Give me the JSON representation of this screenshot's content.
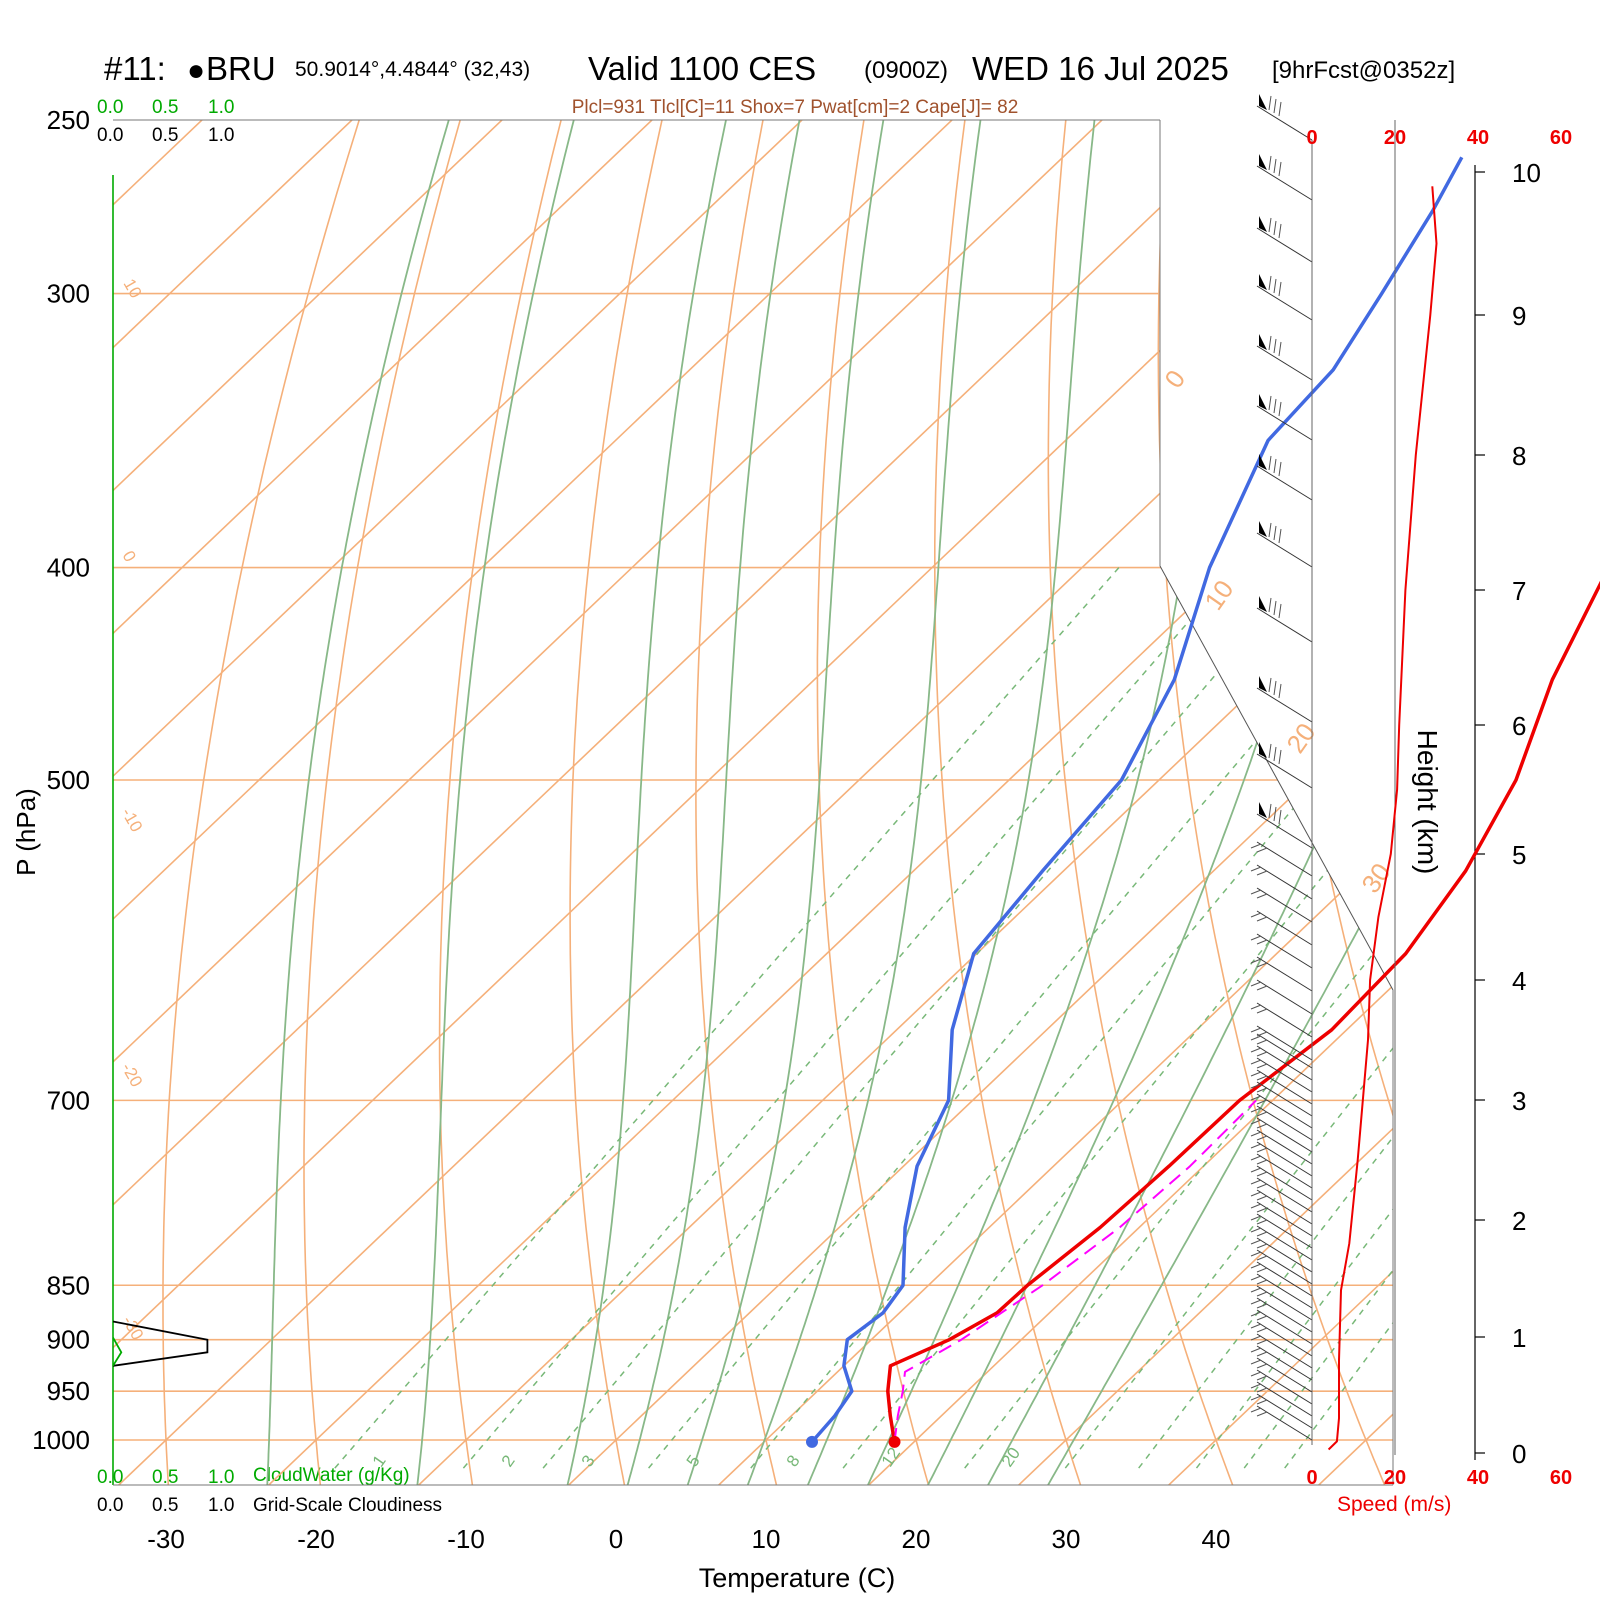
{
  "header": {
    "station_id": "#11:",
    "station_marker": "●",
    "station_name": "BRU",
    "coords": "50.9014°,4.4844° (32,43)",
    "valid_label": "Valid 1100 CES",
    "valid_z": "(0900Z)",
    "date": "WED 16 Jul 2025",
    "forecast": "[9hrFcst@0352z]",
    "indices": "Plcl=931 Tlcl[C]=11 Shox=7 Pwat[cm]=2 Cape[J]= 82"
  },
  "cloud_scale": {
    "ticks": [
      "0.0",
      "0.5",
      "1.0"
    ],
    "cloudwater_label": "CloudWater (g/Kg)",
    "cloudiness_label": "Grid-Scale Cloudiness"
  },
  "colors": {
    "isotherm": "#f5b07a",
    "dry_adiabat": "#f5b07a",
    "moist_adiabat": "#88b888",
    "mixing_ratio": "#78b878",
    "temperature": "#ee0000",
    "dewpoint": "#4169e1",
    "parcel": "#ff00ff",
    "speed": "#ee0000",
    "cloudwater": "#00aa00"
  },
  "chart_data": {
    "type": "line",
    "title": "",
    "xlabel": "Temperature (C)",
    "ylabel": "P (hPa)",
    "y2label": "Height (km)",
    "speed_label": "Speed (m/s)",
    "temperature_ticks": [
      "-30",
      "-20",
      "-10",
      "0",
      "10",
      "20",
      "30",
      "40"
    ],
    "pressure_ticks": [
      "250",
      "300",
      "400",
      "500",
      "700",
      "850",
      "900",
      "950",
      "1000"
    ],
    "height_ticks": [
      "0",
      "1",
      "2",
      "3",
      "4",
      "5",
      "6",
      "7",
      "8",
      "9",
      "10"
    ],
    "speed_ticks": [
      "0",
      "20",
      "40",
      "60"
    ],
    "dry_adiabat_labels": [
      "-30",
      "-20",
      "-10",
      "0",
      "10",
      "0",
      "10",
      "20",
      "30"
    ],
    "mixing_ratio_labels": [
      "1",
      "2",
      "3",
      "5",
      "8",
      "12",
      "20"
    ],
    "series": [
      {
        "name": "Temperature",
        "points": [
          {
            "p": 1002,
            "t": 18.7
          },
          {
            "p": 975,
            "t": 16.6
          },
          {
            "p": 950,
            "t": 14.7
          },
          {
            "p": 925,
            "t": 13.1
          },
          {
            "p": 900,
            "t": 15.2
          },
          {
            "p": 875,
            "t": 16.5
          },
          {
            "p": 850,
            "t": 16.6
          },
          {
            "p": 800,
            "t": 17.4
          },
          {
            "p": 750,
            "t": 17.7
          },
          {
            "p": 700,
            "t": 17.8
          },
          {
            "p": 650,
            "t": 19.0
          },
          {
            "p": 600,
            "t": 18.6
          },
          {
            "p": 550,
            "t": 16.8
          },
          {
            "p": 500,
            "t": 13.8
          },
          {
            "p": 450,
            "t": 9.2
          },
          {
            "p": 400,
            "t": 5.1
          },
          {
            "p": 350,
            "t": 1.1
          },
          {
            "p": 325,
            "t": -1.4
          },
          {
            "p": 300,
            "t": -5.3
          },
          {
            "p": 275,
            "t": -8.6
          },
          {
            "p": 260,
            "t": -9.9
          }
        ]
      },
      {
        "name": "Dewpoint",
        "points": [
          {
            "p": 1002,
            "t": 13.2
          },
          {
            "p": 975,
            "t": 12.9
          },
          {
            "p": 950,
            "t": 12.3
          },
          {
            "p": 925,
            "t": 10.0
          },
          {
            "p": 900,
            "t": 8.4
          },
          {
            "p": 875,
            "t": 8.9
          },
          {
            "p": 850,
            "t": 8.3
          },
          {
            "p": 800,
            "t": 4.4
          },
          {
            "p": 750,
            "t": 0.9
          },
          {
            "p": 700,
            "t": -1.6
          },
          {
            "p": 650,
            "t": -6.3
          },
          {
            "p": 600,
            "t": -10.2
          },
          {
            "p": 550,
            "t": -11.4
          },
          {
            "p": 500,
            "t": -12.5
          },
          {
            "p": 450,
            "t": -16.0
          },
          {
            "p": 400,
            "t": -21.5
          },
          {
            "p": 350,
            "t": -26.5
          },
          {
            "p": 325,
            "t": -27.1
          },
          {
            "p": 300,
            "t": -29.2
          },
          {
            "p": 275,
            "t": -31.6
          },
          {
            "p": 260,
            "t": -33.4
          }
        ]
      },
      {
        "name": "Parcel",
        "points": [
          {
            "p": 1002,
            "t": 18.7
          },
          {
            "p": 975,
            "t": 17.1
          },
          {
            "p": 950,
            "t": 15.7
          },
          {
            "p": 931,
            "t": 14.5
          },
          {
            "p": 900,
            "t": 16.0
          },
          {
            "p": 850,
            "t": 17.6
          },
          {
            "p": 800,
            "t": 18.7
          },
          {
            "p": 750,
            "t": 19.1
          },
          {
            "p": 700,
            "t": 18.9
          }
        ]
      }
    ],
    "wind_speed": [
      {
        "z": 0.03,
        "v": 4
      },
      {
        "z": 0.1,
        "v": 6
      },
      {
        "z": 0.3,
        "v": 6.5
      },
      {
        "z": 0.8,
        "v": 6.5
      },
      {
        "z": 1.4,
        "v": 7
      },
      {
        "z": 1.8,
        "v": 9
      },
      {
        "z": 2.5,
        "v": 11
      },
      {
        "z": 3.5,
        "v": 13.5
      },
      {
        "z": 4.0,
        "v": 14
      },
      {
        "z": 4.5,
        "v": 16
      },
      {
        "z": 5.0,
        "v": 19
      },
      {
        "z": 5.5,
        "v": 20.5
      },
      {
        "z": 6.0,
        "v": 21
      },
      {
        "z": 7.0,
        "v": 22.5
      },
      {
        "z": 8.0,
        "v": 25
      },
      {
        "z": 9.0,
        "v": 28.5
      },
      {
        "z": 9.5,
        "v": 30
      },
      {
        "z": 9.9,
        "v": 29
      }
    ],
    "cloudiness": [
      {
        "p": 883,
        "c": 0.0
      },
      {
        "p": 900,
        "c": 0.8
      },
      {
        "p": 912,
        "c": 0.8
      },
      {
        "p": 925,
        "c": 0.0
      }
    ],
    "cloudwater": [
      {
        "p": 898,
        "c": 0.0
      },
      {
        "p": 912,
        "c": 0.07
      },
      {
        "p": 925,
        "c": 0.0
      }
    ]
  }
}
